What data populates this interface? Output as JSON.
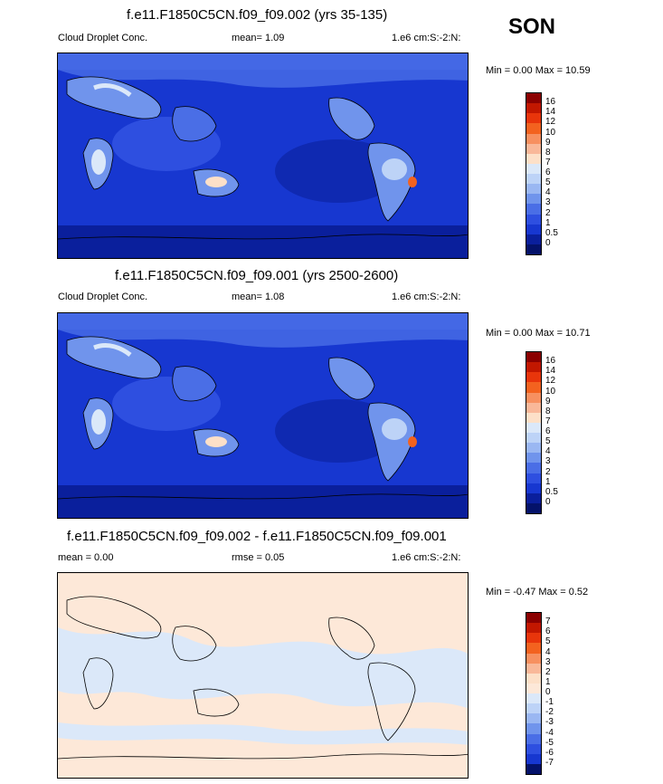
{
  "season": "SON",
  "panels": [
    {
      "title": "f.e11.F1850C5CN.f09_f09.002 (yrs 35-135)",
      "left_label": "Cloud Droplet Conc.",
      "center_label": "mean=   1.09",
      "right_label": "1.e6 cm:S:-2:N:",
      "minmax": "Min =   0.00 Max =  10.59",
      "type": "field"
    },
    {
      "title": "f.e11.F1850C5CN.f09_f09.001 (yrs 2500-2600)",
      "left_label": "Cloud Droplet Conc.",
      "center_label": "mean=   1.08",
      "right_label": "1.e6 cm:S:-2:N:",
      "minmax": "Min =   0.00 Max =  10.71",
      "type": "field"
    },
    {
      "title": "f.e11.F1850C5CN.f09_f09.002 - f.e11.F1850C5CN.f09_f09.001",
      "left_label": "mean =    0.00",
      "center_label": "rmse =    0.05",
      "right_label": "1.e6 cm:S:-2:N:",
      "minmax": "Min =  -0.47 Max =   0.52",
      "type": "diff"
    }
  ],
  "colorbar_field": {
    "labels": [
      "16",
      "14",
      "12",
      "10",
      "9",
      "8",
      "7",
      "6",
      "5",
      "4",
      "3",
      "2",
      "1",
      "0.5",
      "0"
    ],
    "colors": [
      "#8b0000",
      "#c21700",
      "#e8350b",
      "#f3621f",
      "#f79060",
      "#f9b899",
      "#fde0c8",
      "#dbe8f9",
      "#bdd3f7",
      "#9ab7f2",
      "#7094ec",
      "#4a6ee6",
      "#2e4fe0",
      "#1737d0",
      "#0a1f9c",
      "#04126a"
    ]
  },
  "colorbar_diff": {
    "labels": [
      "7",
      "6",
      "5",
      "4",
      "3",
      "2",
      "1",
      "0",
      "-1",
      "-2",
      "-3",
      "-4",
      "-5",
      "-6",
      "-7"
    ],
    "colors": [
      "#8b0000",
      "#c21700",
      "#e8350b",
      "#f3621f",
      "#f79060",
      "#f9b899",
      "#fde0c8",
      "#fde8d8",
      "#dbe8f9",
      "#bdd3f7",
      "#9ab7f2",
      "#7094ec",
      "#4a6ee6",
      "#2e4fe0",
      "#1737d0",
      "#04126a"
    ]
  }
}
